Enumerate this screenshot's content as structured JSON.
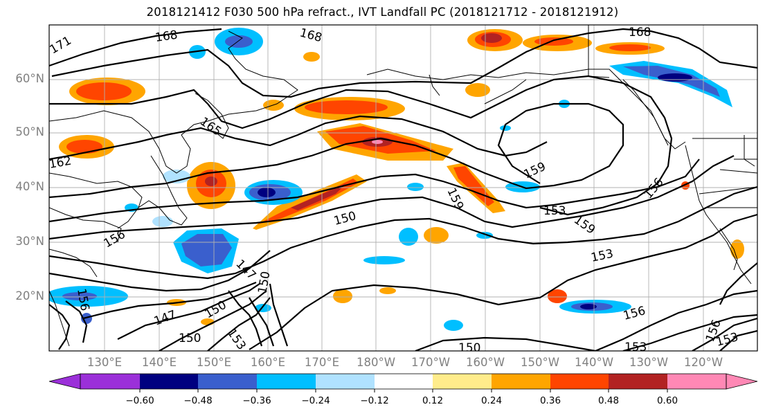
{
  "title": "2018121412 F030 500 hPa refract., IVT Landfall PC (2018121712 - 2018121912)",
  "map": {
    "lat_labels": [
      "60°N",
      "50°N",
      "40°N",
      "30°N",
      "20°N"
    ],
    "lon_labels": [
      "130°E",
      "140°E",
      "150°E",
      "160°E",
      "170°E",
      "180°W",
      "170°W",
      "160°W",
      "150°W",
      "140°W",
      "130°W",
      "120°W"
    ],
    "contour_labels": [
      "171",
      "168",
      "168",
      "168",
      "165",
      "162",
      "159",
      "159",
      "159",
      "156",
      "156",
      "156",
      "153",
      "153",
      "153",
      "153",
      "150",
      "150",
      "150",
      "147",
      "147",
      "150",
      "150",
      "153",
      "156",
      "156"
    ]
  },
  "colorbar": {
    "ticks": [
      "−0.60",
      "−0.48",
      "−0.36",
      "−0.24",
      "−0.12",
      "0.12",
      "0.24",
      "0.36",
      "0.48",
      "0.60"
    ],
    "colors": [
      "#9b30d9",
      "#000080",
      "#3a5fcd",
      "#00bfff",
      "#b0e2ff",
      "#ffffff",
      "#ffec8b",
      "#ffa500",
      "#ff4500",
      "#b22222",
      "#ff88b5"
    ]
  }
}
